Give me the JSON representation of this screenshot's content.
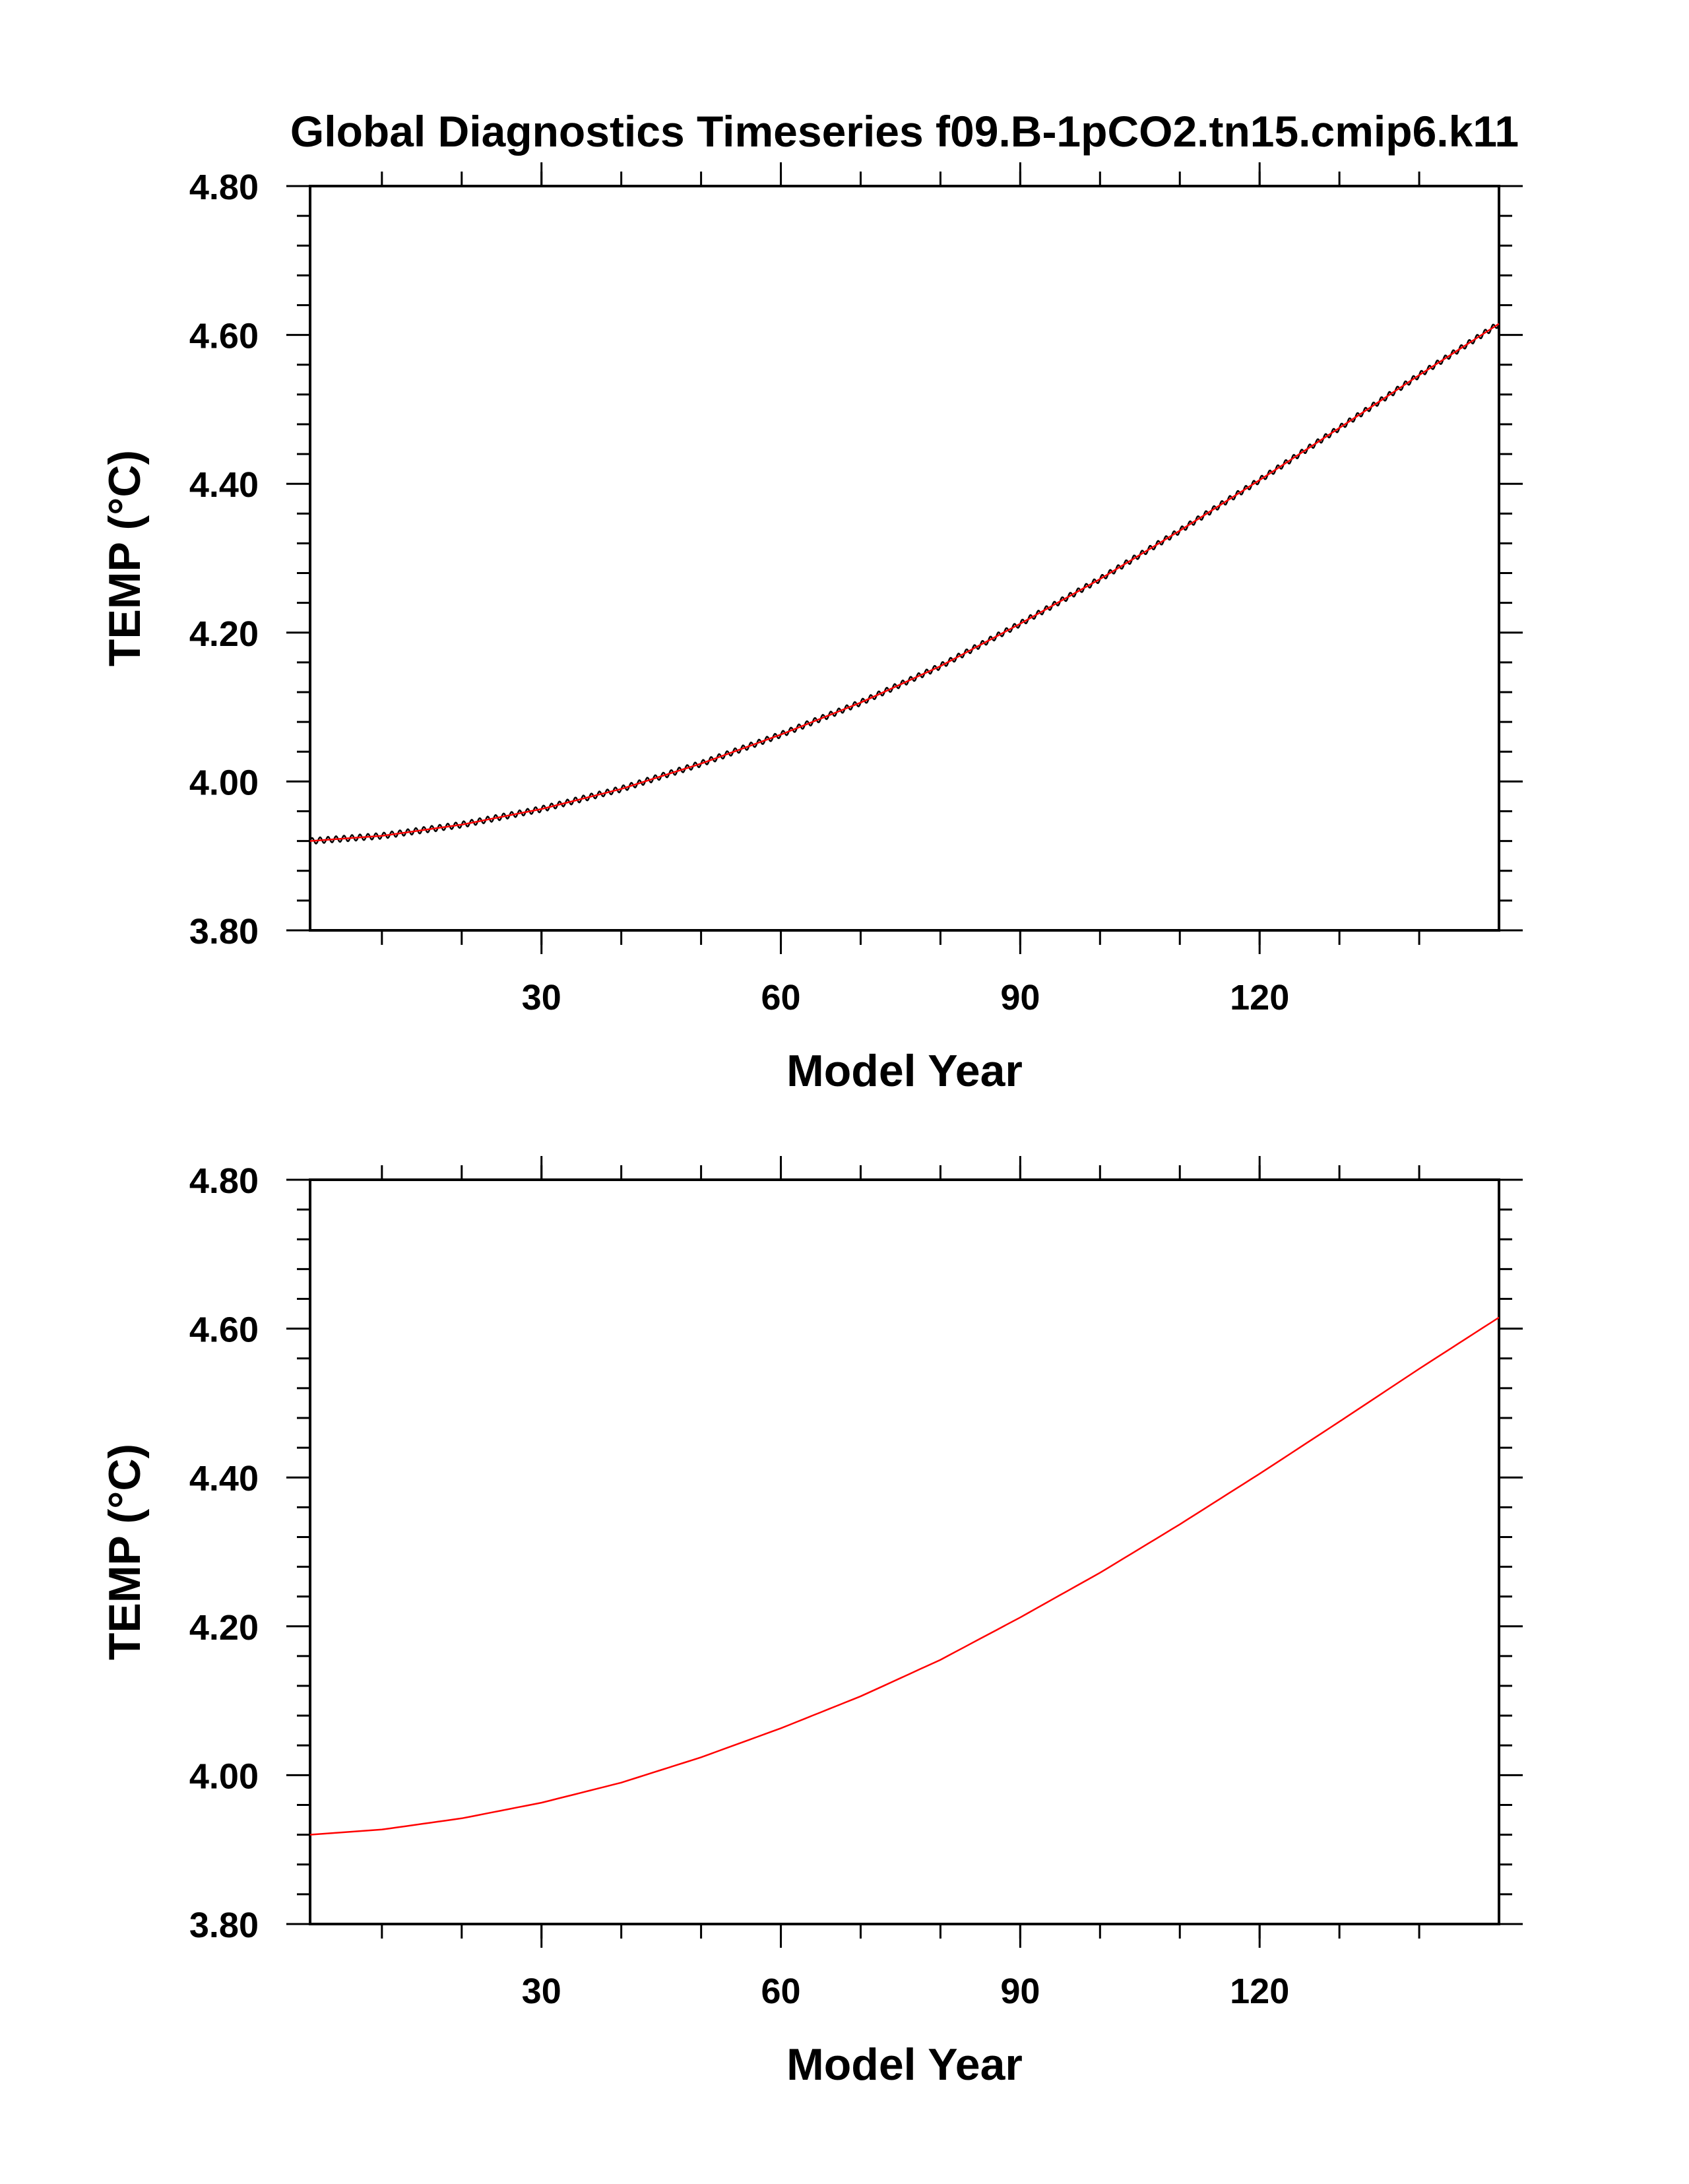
{
  "title": "Global Diagnostics Timeseries f09.B-1pCO2.tn15.cmip6.k11",
  "colors": {
    "axis": "#000000",
    "monthly_line": "#000000",
    "annual_line": "#ff0000",
    "background": "#ffffff"
  },
  "chart_data": [
    {
      "type": "line",
      "panel": "top",
      "xlabel": "Model Year",
      "ylabel": "TEMP (°C)",
      "xlim": [
        1,
        150
      ],
      "ylim": [
        3.8,
        4.8
      ],
      "xticks": [
        30,
        60,
        90,
        120
      ],
      "xtick_labels": [
        "30",
        "60",
        "90",
        "120"
      ],
      "yticks": [
        3.8,
        4.0,
        4.2,
        4.4,
        4.6,
        4.8
      ],
      "ytick_labels": [
        "3.80",
        "4.00",
        "4.20",
        "4.40",
        "4.60",
        "4.80"
      ],
      "grid": false,
      "legend": "none",
      "series": [
        {
          "color": "#000000",
          "resolution": "monthly",
          "seasonal_amplitude": 0.004,
          "x": [
            1,
            10,
            20,
            30,
            40,
            50,
            60,
            70,
            80,
            90,
            100,
            110,
            120,
            130,
            140,
            150
          ],
          "y": [
            3.92,
            3.927,
            3.942,
            3.963,
            3.99,
            4.024,
            4.063,
            4.106,
            4.155,
            4.212,
            4.272,
            4.337,
            4.405,
            4.475,
            4.546,
            4.615
          ]
        },
        {
          "color": "#ff0000",
          "resolution": "annual",
          "x": [
            1,
            10,
            20,
            30,
            40,
            50,
            60,
            70,
            80,
            90,
            100,
            110,
            120,
            130,
            140,
            150
          ],
          "y": [
            3.92,
            3.927,
            3.942,
            3.963,
            3.99,
            4.024,
            4.063,
            4.106,
            4.155,
            4.212,
            4.272,
            4.337,
            4.405,
            4.475,
            4.546,
            4.615
          ]
        }
      ]
    },
    {
      "type": "line",
      "panel": "bottom",
      "xlabel": "Model Year",
      "ylabel": "TEMP (°C)",
      "xlim": [
        1,
        150
      ],
      "ylim": [
        3.8,
        4.8
      ],
      "xticks": [
        30,
        60,
        90,
        120
      ],
      "xtick_labels": [
        "30",
        "60",
        "90",
        "120"
      ],
      "yticks": [
        3.8,
        4.0,
        4.2,
        4.4,
        4.6,
        4.8
      ],
      "ytick_labels": [
        "3.80",
        "4.00",
        "4.20",
        "4.40",
        "4.60",
        "4.80"
      ],
      "grid": false,
      "legend": "none",
      "series": [
        {
          "color": "#ff0000",
          "resolution": "annual",
          "x": [
            1,
            10,
            20,
            30,
            40,
            50,
            60,
            70,
            80,
            90,
            100,
            110,
            120,
            130,
            140,
            150
          ],
          "y": [
            3.92,
            3.927,
            3.942,
            3.963,
            3.99,
            4.024,
            4.063,
            4.106,
            4.155,
            4.212,
            4.272,
            4.337,
            4.405,
            4.475,
            4.546,
            4.615
          ]
        }
      ]
    }
  ]
}
